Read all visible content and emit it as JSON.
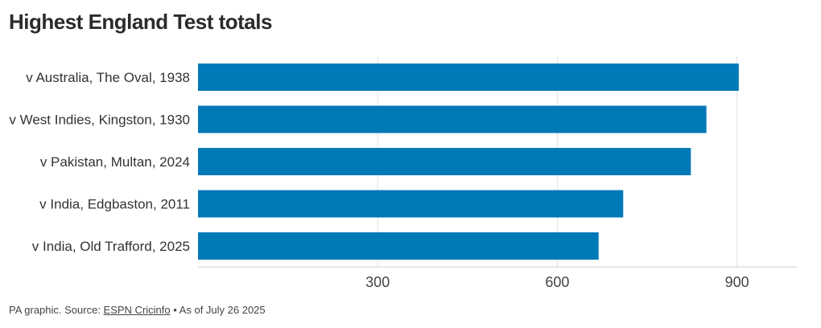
{
  "title": "Highest England Test totals",
  "footer": {
    "prefix": "PA graphic. Source: ",
    "source_link": "ESPN Cricinfo",
    "suffix": " • As of July 26 2025"
  },
  "colors": {
    "bar": "#0079b8",
    "grid": "#e4e4e4",
    "axis": "#cfcfcf"
  },
  "chart_data": {
    "type": "bar",
    "orientation": "horizontal",
    "title": "Highest England Test totals",
    "categories": [
      "v Australia, The Oval, 1938",
      "v West Indies, Kingston, 1930",
      "v Pakistan, Multan, 2024",
      "v India, Edgbaston, 2011",
      "v India, Old Trafford, 2025"
    ],
    "values": [
      903,
      849,
      823,
      710,
      669
    ],
    "xlim": [
      0,
      1000
    ],
    "xticks": [
      300,
      600,
      900
    ],
    "tick_labels": [
      "300",
      "600",
      "900"
    ],
    "grid": true,
    "legend": "none"
  }
}
